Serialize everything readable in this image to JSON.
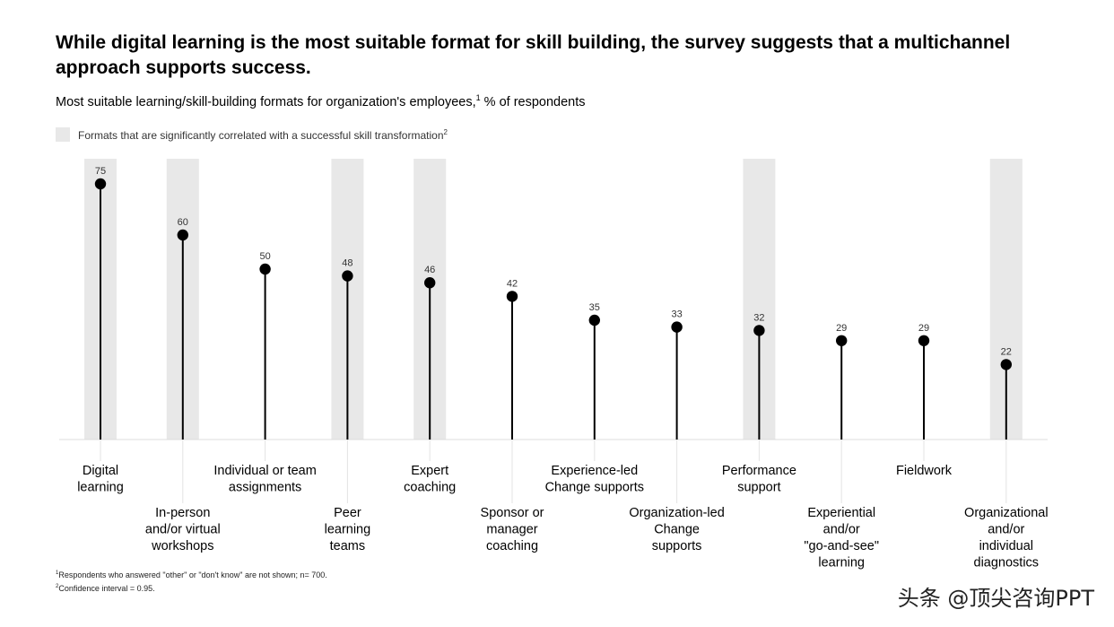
{
  "header": {
    "title": "While digital learning is the most suitable format for skill building, the survey suggests that a multichannel approach supports success.",
    "subtitle_main": "Most suitable learning/skill-building formats for organization's employees,",
    "subtitle_sup": "1",
    "subtitle_unit": " % of respondents"
  },
  "legend": {
    "label": "Formats that are significantly correlated with a successful skill transformation",
    "sup": "2",
    "color": "#e8e8e8"
  },
  "chart_data": {
    "type": "lollipop",
    "title": "",
    "xlabel": "",
    "ylabel": "",
    "ylim": [
      0,
      75
    ],
    "grid": false,
    "categories": [
      "Digital learning",
      "In-person and/or virtual workshops",
      "Individual or team assignments",
      "Peer learning teams",
      "Expert coaching",
      "Sponsor or manager coaching",
      "Experience-led Change supports",
      "Organization-led Change supports",
      "Performance support",
      "Experiential and/or \"go-and-see\" learning",
      "Fieldwork",
      "Organizational and/or individual diagnostics"
    ],
    "label_lines": [
      [
        "Digital",
        "learning"
      ],
      [
        "In-person",
        "and/or virtual",
        "workshops"
      ],
      [
        "Individual or team",
        "assignments"
      ],
      [
        "Peer",
        "learning",
        "teams"
      ],
      [
        "Expert",
        "coaching"
      ],
      [
        "Sponsor or",
        "manager",
        "coaching"
      ],
      [
        "Experience-led",
        "Change supports"
      ],
      [
        "Organization-led",
        "Change",
        "supports"
      ],
      [
        "Performance",
        "support"
      ],
      [
        "Experiential",
        "and/or",
        "\"go-and-see\"",
        "learning"
      ],
      [
        "Fieldwork"
      ],
      [
        "Organizational",
        "and/or",
        "individual",
        "diagnostics"
      ]
    ],
    "label_row": [
      "upper",
      "lower",
      "upper",
      "lower",
      "upper",
      "lower",
      "upper",
      "lower",
      "upper",
      "lower",
      "upper",
      "lower"
    ],
    "values": [
      75,
      60,
      50,
      48,
      46,
      42,
      35,
      33,
      32,
      29,
      29,
      22
    ],
    "highlighted": [
      true,
      true,
      false,
      true,
      true,
      false,
      false,
      false,
      true,
      false,
      false,
      true
    ],
    "colors": {
      "stem": "#000000",
      "dot": "#000000",
      "highlight": "#e8e8e8",
      "baseline": "#dddddd",
      "connector": "#e3e3e3"
    }
  },
  "footnotes": {
    "note1_sup": "1",
    "note1": "Respondents who answered \"other\" or \"don't know\" are not shown; n= 700.",
    "note2_sup": "2",
    "note2": "Confidence interval = 0.95."
  },
  "watermark": "头条 @顶尖咨询PPT"
}
